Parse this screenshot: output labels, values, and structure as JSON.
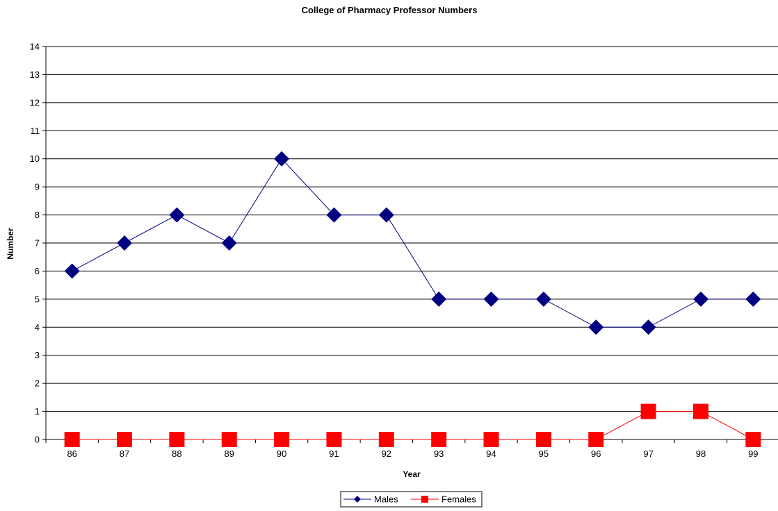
{
  "chart_data": {
    "type": "line",
    "title": "College of Pharmacy Professor Numbers",
    "xlabel": "Year",
    "ylabel": "Number",
    "categories": [
      "86",
      "87",
      "88",
      "89",
      "90",
      "91",
      "92",
      "93",
      "94",
      "95",
      "96",
      "97",
      "98",
      "99"
    ],
    "ylim": [
      0,
      14
    ],
    "yticks": [
      0,
      1,
      2,
      3,
      4,
      5,
      6,
      7,
      8,
      9,
      10,
      11,
      12,
      13,
      14
    ],
    "grid": "horizontal",
    "legend_position": "bottom",
    "series": [
      {
        "name": "Males",
        "values": [
          6,
          7,
          8,
          7,
          10,
          8,
          8,
          5,
          5,
          5,
          4,
          4,
          5,
          5
        ],
        "color": "#000080",
        "marker": "diamond"
      },
      {
        "name": "Females",
        "values": [
          0,
          0,
          0,
          0,
          0,
          0,
          0,
          0,
          0,
          0,
          0,
          1,
          1,
          0
        ],
        "color": "#ff0000",
        "marker": "square"
      }
    ]
  }
}
